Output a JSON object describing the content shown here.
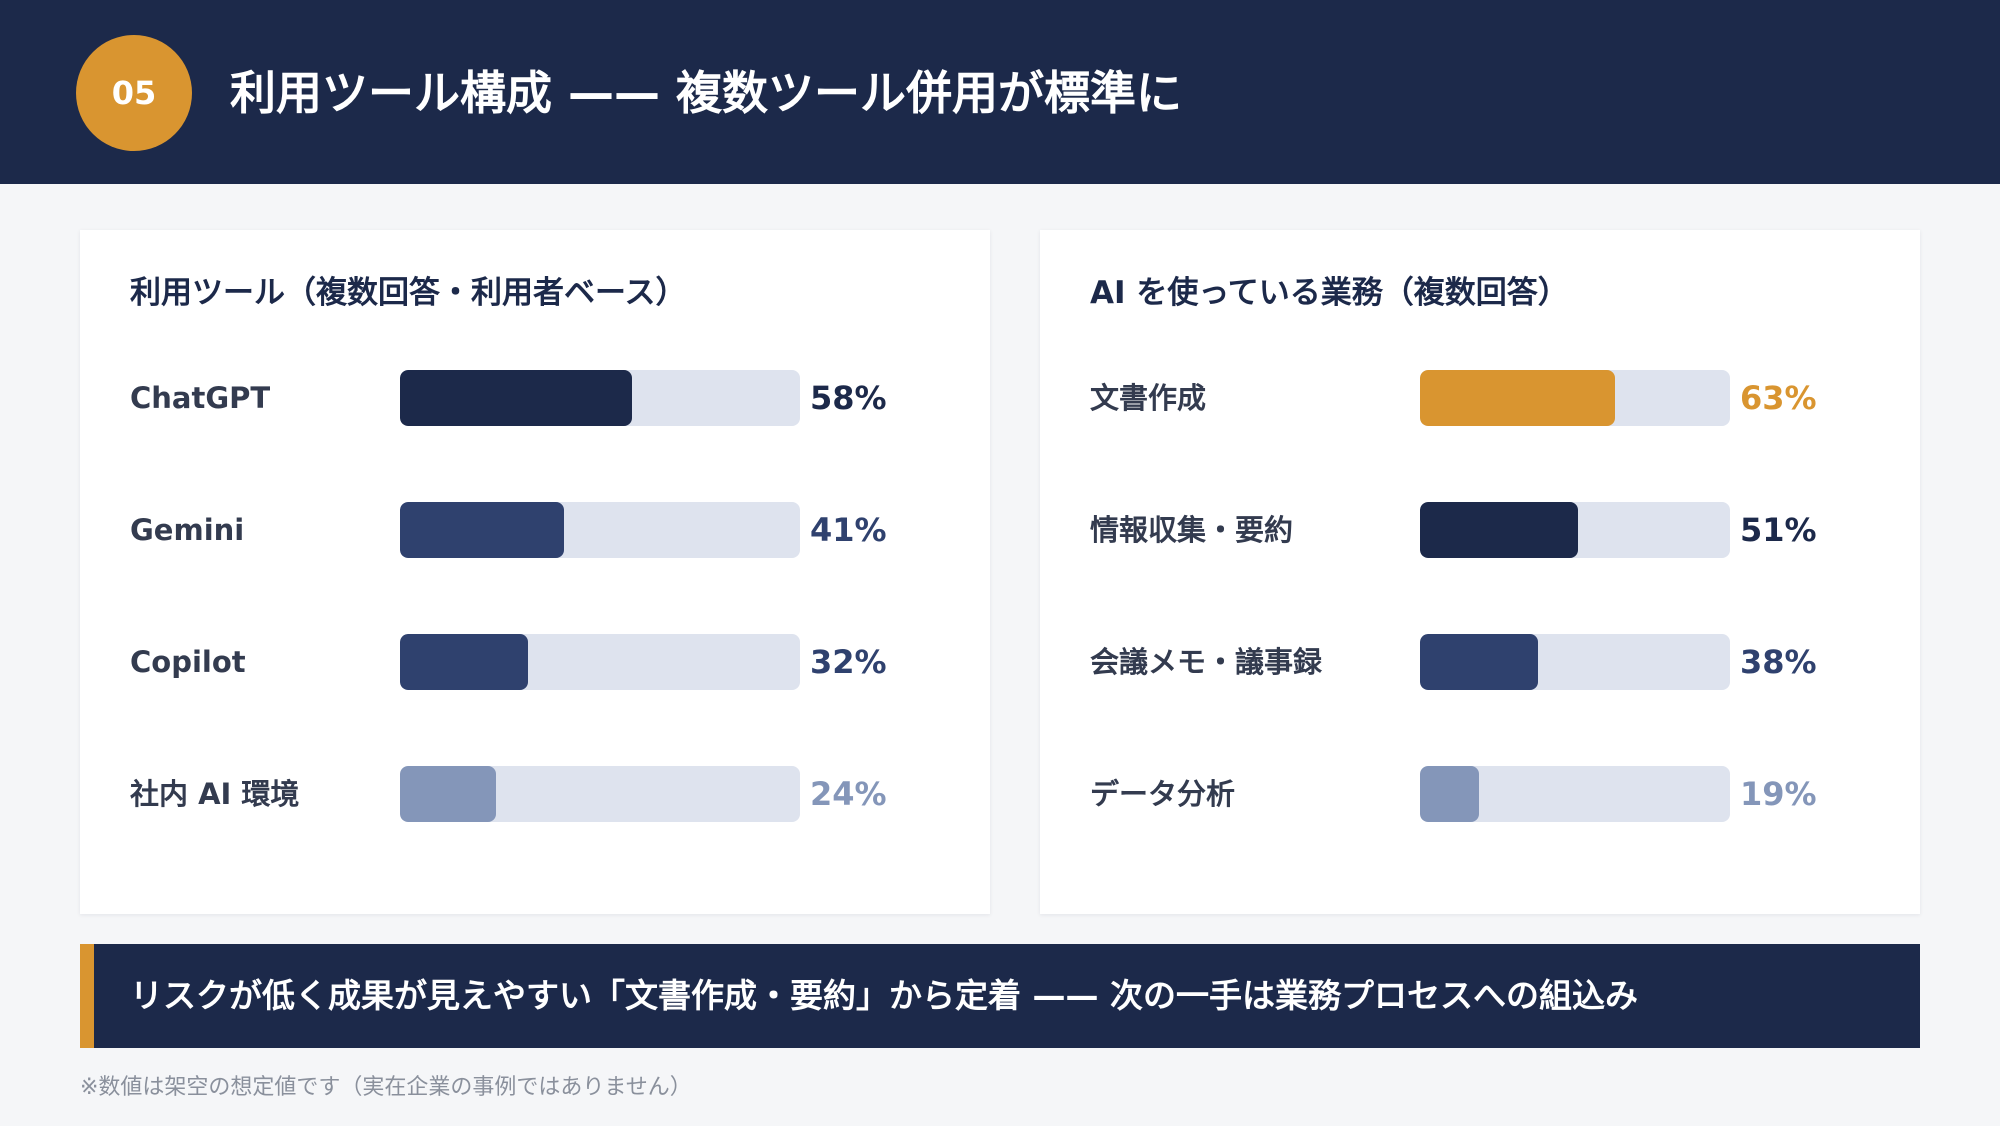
{
  "header": {
    "badge": "05",
    "title": "利用ツール構成 —— 複数ツール併用が標準に"
  },
  "colors": {
    "navy": "#1c294a",
    "mid_navy": "#2f416e",
    "muted_blue": "#8496b9",
    "orange": "#d99530",
    "track": "#dee3ee"
  },
  "chart_data": [
    {
      "type": "bar",
      "orientation": "horizontal",
      "title": "利用ツール（複数回答・利用者ベース）",
      "categories": [
        "ChatGPT",
        "Gemini",
        "Copilot",
        "社内 AI 環境"
      ],
      "values": [
        58,
        41,
        32,
        24
      ],
      "value_labels": [
        "58%",
        "41%",
        "32%",
        "24%"
      ],
      "bar_colors": [
        "#1c294a",
        "#2f416e",
        "#2f416e",
        "#8496b9"
      ],
      "label_colors": [
        "#1c294a",
        "#2f416e",
        "#2f416e",
        "#8496b9"
      ],
      "xlim": [
        0,
        100
      ]
    },
    {
      "type": "bar",
      "orientation": "horizontal",
      "title": "AI を使っている業務（複数回答）",
      "categories": [
        "文書作成",
        "情報収集・要約",
        "会議メモ・議事録",
        "データ分析"
      ],
      "values": [
        63,
        51,
        38,
        19
      ],
      "value_labels": [
        "63%",
        "51%",
        "38%",
        "19%"
      ],
      "bar_colors": [
        "#d99530",
        "#1c294a",
        "#2f416e",
        "#8496b9"
      ],
      "label_colors": [
        "#d99530",
        "#1c294a",
        "#2f416e",
        "#8496b9"
      ],
      "xlim": [
        0,
        100
      ]
    }
  ],
  "footer": {
    "message": "リスクが低く成果が見えやすい「文書作成・要約」から定着 —— 次の一手は業務プロセスへの組込み"
  },
  "note": "※数値は架空の想定値です（実在企業の事例ではありません）"
}
